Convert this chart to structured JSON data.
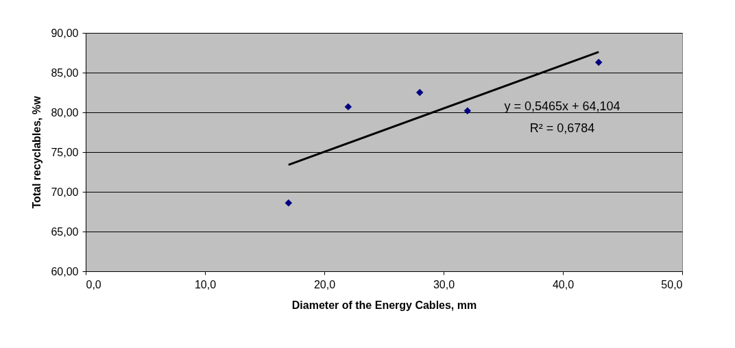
{
  "chart_data": {
    "type": "scatter",
    "xlabel": "Diameter of the Energy Cables, mm",
    "ylabel": "Total recyclables, %w",
    "xlim": [
      0,
      50
    ],
    "ylim": [
      60,
      90
    ],
    "xticks": [
      {
        "value": 0,
        "label": "0,0"
      },
      {
        "value": 10,
        "label": "10,0"
      },
      {
        "value": 20,
        "label": "20,0"
      },
      {
        "value": 30,
        "label": "30,0"
      },
      {
        "value": 40,
        "label": "40,0"
      },
      {
        "value": 50,
        "label": "50,0"
      }
    ],
    "yticks": [
      {
        "value": 60,
        "label": "60,00"
      },
      {
        "value": 65,
        "label": "65,00"
      },
      {
        "value": 70,
        "label": "70,00"
      },
      {
        "value": 75,
        "label": "75,00"
      },
      {
        "value": 80,
        "label": "80,00"
      },
      {
        "value": 85,
        "label": "85,00"
      },
      {
        "value": 90,
        "label": "90,00"
      }
    ],
    "grid": "y",
    "series": [
      {
        "color": "#000080",
        "marker": "diamond",
        "x": [
          17,
          22,
          28,
          32,
          43
        ],
        "values": [
          68.6,
          80.7,
          82.5,
          80.2,
          86.3
        ]
      },
      {
        "type": "line",
        "color": "#000000",
        "line_style": "solid",
        "x": [
          17,
          43
        ],
        "values": [
          73.4,
          87.6
        ]
      }
    ],
    "annotations": [
      "y = 0,5465x + 64,104",
      "R² = 0,6784"
    ]
  }
}
